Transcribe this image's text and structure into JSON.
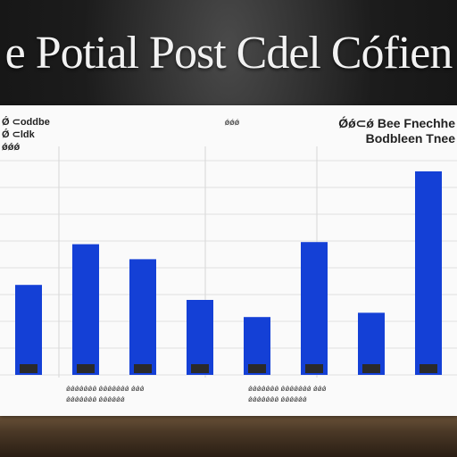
{
  "title": "e Potial Post Cdel Cófien",
  "chart_data": {
    "type": "bar",
    "title": "e Potial Post Cdel Cófien",
    "xlabel": "",
    "ylabel": "",
    "ylim": [
      0,
      100
    ],
    "grid": true,
    "color": "#1440d6",
    "categories": [
      "",
      "",
      "",
      "",
      "",
      "",
      "",
      ""
    ],
    "values": [
      42,
      61,
      54,
      35,
      27,
      62,
      29,
      95
    ]
  },
  "panel": {
    "header_left": "Ǿ ⊂oddbe",
    "header_left_2": "Ǿ ⊂ldk",
    "header_left_3": "ǿǿǿ",
    "header_center": "ǿǿǿ",
    "header_right": "Ǿǿ⊂ǿ Bee Fnechhe",
    "header_right_2": "Bodbleen Tnee",
    "caption_left": "ǿǿǿǿǿǿǿ ǿǿǿǿǿǿǿ ǿǿǿ",
    "caption_left_2": "ǿǿǿǿǿǿǿ ǿǿǿǿǿǿ",
    "caption_right": "ǿǿǿǿǿǿǿ ǿǿǿǿǿǿǿ ǿǿǿ",
    "caption_right_2": "ǿǿǿǿǿǿǿ ǿǿǿǿǿǿ"
  }
}
